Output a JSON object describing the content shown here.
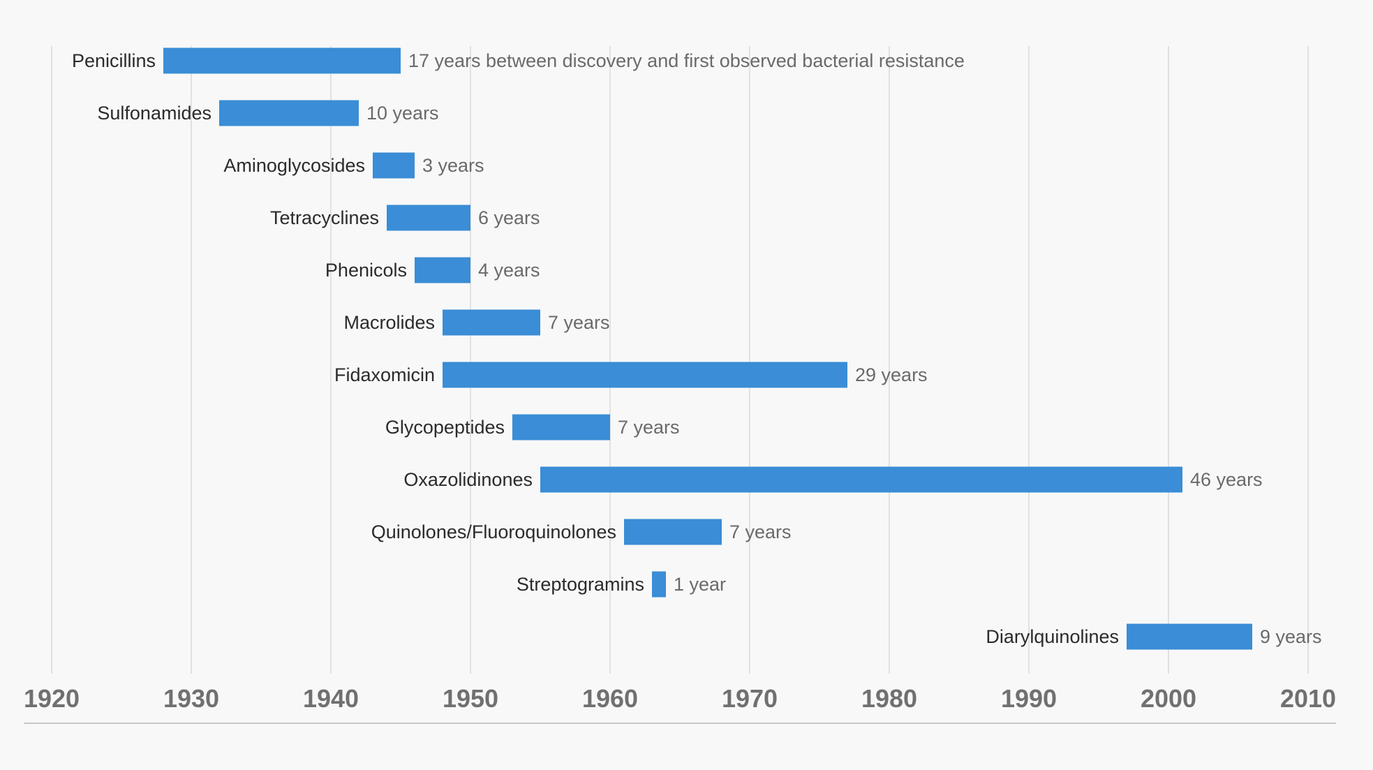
{
  "chart_data": {
    "type": "bar",
    "orientation": "horizontal-range",
    "title": "",
    "xlabel": "",
    "ylabel": "",
    "xlim": [
      1920,
      2010
    ],
    "x_ticks": [
      1920,
      1930,
      1940,
      1950,
      1960,
      1970,
      1980,
      1990,
      2000,
      2010
    ],
    "x_tick_labels": [
      "1920",
      "1930",
      "1940",
      "1950",
      "1960",
      "1970",
      "1980",
      "1990",
      "2000",
      "2010"
    ],
    "grid": true,
    "legend": "none",
    "series": [
      {
        "name": "Years between discovery and first observed bacterial resistance",
        "color": "#3a8dd6",
        "items": [
          {
            "category": "Penicillins",
            "start": 1928,
            "end": 1945,
            "label": "17 years between discovery and first observed bacterial resistance"
          },
          {
            "category": "Sulfonamides",
            "start": 1932,
            "end": 1942,
            "label": "10 years"
          },
          {
            "category": "Aminoglycosides",
            "start": 1943,
            "end": 1946,
            "label": "3 years"
          },
          {
            "category": "Tetracyclines",
            "start": 1944,
            "end": 1950,
            "label": "6 years"
          },
          {
            "category": "Phenicols",
            "start": 1946,
            "end": 1950,
            "label": "4 years"
          },
          {
            "category": "Macrolides",
            "start": 1948,
            "end": 1955,
            "label": "7 years"
          },
          {
            "category": "Fidaxomicin",
            "start": 1948,
            "end": 1977,
            "label": "29 years"
          },
          {
            "category": "Glycopeptides",
            "start": 1953,
            "end": 1960,
            "label": "7 years"
          },
          {
            "category": "Oxazolidinones",
            "start": 1955,
            "end": 2001,
            "label": "46 years"
          },
          {
            "category": "Quinolones/Fluoroquinolones",
            "start": 1961,
            "end": 1968,
            "label": "7 years"
          },
          {
            "category": "Streptogramins",
            "start": 1963,
            "end": 1964,
            "label": "1 year"
          },
          {
            "category": "Diarylquinolines",
            "start": 1997,
            "end": 2006,
            "label": "9 years"
          }
        ]
      }
    ]
  }
}
